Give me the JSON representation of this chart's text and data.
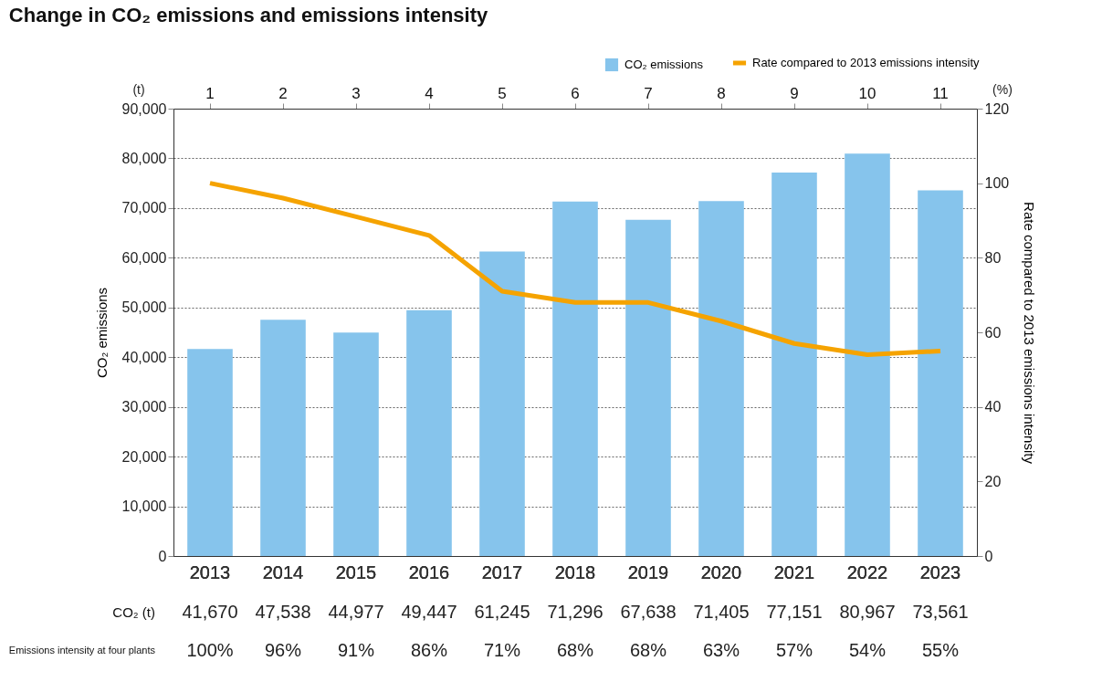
{
  "chart_data": {
    "type": "bar",
    "title": "Change in CO₂ emissions and emissions intensity",
    "categories": [
      "2013",
      "2014",
      "2015",
      "2016",
      "2017",
      "2018",
      "2019",
      "2020",
      "2021",
      "2022",
      "2023"
    ],
    "series": [
      {
        "name": "CO₂ emissions",
        "color": "#86c4ec",
        "values": [
          41670,
          47538,
          44977,
          49447,
          61245,
          71296,
          67638,
          71405,
          77151,
          80967,
          73561
        ],
        "value_labels": [
          "41,670",
          "47,538",
          "44,977",
          "49,447",
          "61,245",
          "71,296",
          "67,638",
          "71,405",
          "77,151",
          "80,967",
          "73,561"
        ]
      },
      {
        "name": "Rate compared to 2013 emissions intensity",
        "type": "line",
        "axis": "y2",
        "color": "#f5a300",
        "values": [
          100,
          96,
          91,
          86,
          71,
          68,
          68,
          63,
          57,
          54,
          55
        ],
        "value_labels": [
          "100%",
          "96%",
          "91%",
          "86%",
          "71%",
          "68%",
          "68%",
          "63%",
          "57%",
          "54%",
          "55%"
        ]
      }
    ],
    "ylabel": "CO₂ emissions",
    "y2label": "Rate compared to 2013 emissions intensity",
    "ylim": [
      0,
      90000
    ],
    "yticks": [
      0,
      {
        "value": 10000,
        "label": "10,000"
      },
      {
        "value": 20000,
        "label": "20,000"
      },
      {
        "value": 30000,
        "label": "30,000"
      },
      {
        "value": 40000,
        "label": "40,000"
      },
      {
        "value": 50000,
        "label": "50,000"
      },
      {
        "value": 60000,
        "label": "60,000"
      },
      {
        "value": 70000,
        "label": "70,000"
      },
      {
        "value": 80000,
        "label": "80,000"
      },
      {
        "value": 90000,
        "label": "90,000"
      }
    ],
    "y2lim": [
      0,
      120
    ],
    "y2ticks": [
      0,
      20,
      40,
      60,
      80,
      100,
      120
    ],
    "x2lim": [
      0.5,
      11.5
    ],
    "x2ticks": [
      1,
      2,
      3,
      4,
      5,
      6,
      7,
      8,
      9,
      10,
      11
    ],
    "annotations": [
      "(t)",
      "(%)",
      "CO₂ (t)",
      "Emissions intensity at four plants"
    ],
    "grid": "y",
    "legend": "top right",
    "marker": "none",
    "line_style": "solid"
  }
}
